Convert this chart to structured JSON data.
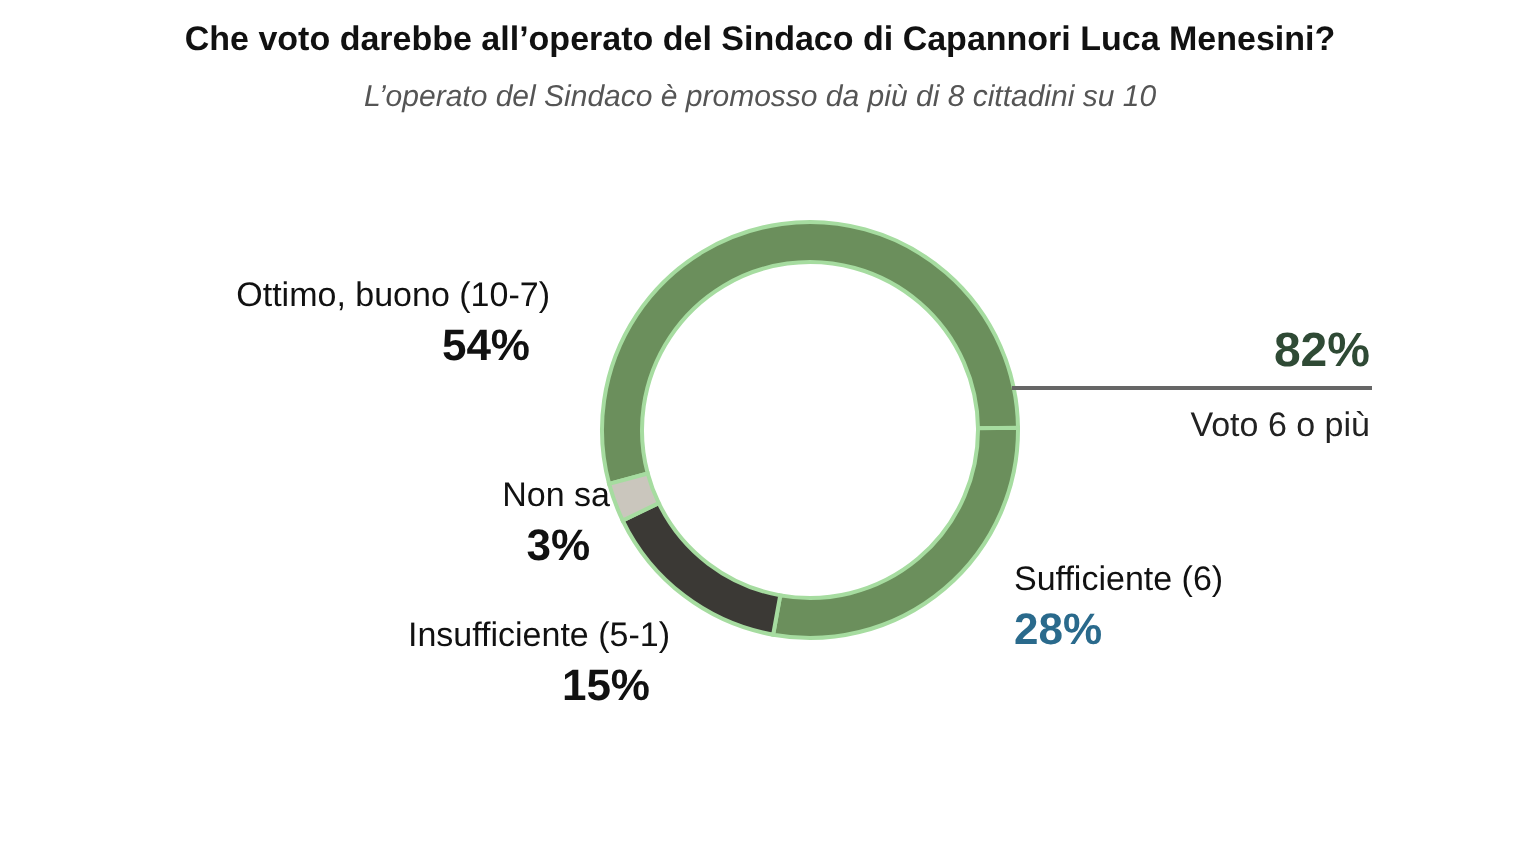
{
  "chart_data": {
    "type": "donut",
    "title": "Che voto darebbe all’operato del Sindaco di Capannori Luca Menesini?",
    "subtitle": "L’operato del Sindaco è promosso da più di 8 cittadini su 10",
    "categories": [
      "Ottimo, buono (10-7)",
      "Sufficiente (6)",
      "Insufficiente (5-1)",
      "Non sa"
    ],
    "values": [
      54,
      28,
      15,
      3
    ],
    "colors": [
      "#6b8f5c",
      "#6b8f5c",
      "#3b3935",
      "#cac6bd"
    ],
    "value_labels": [
      "54%",
      "28%",
      "15%",
      "3%"
    ],
    "annotations": [
      "82%",
      "Voto 6 o più"
    ]
  }
}
